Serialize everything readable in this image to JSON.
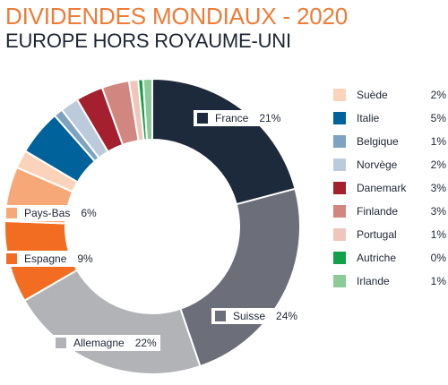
{
  "header": {
    "title": "DIVIDENDES MONDIAUX - 2020",
    "subtitle": "EUROPE HORS ROYAUME-UNI"
  },
  "chart_data": {
    "type": "pie",
    "donut": true,
    "legend_position": "right",
    "slices": [
      {
        "name": "France",
        "value": 21,
        "label": "21%",
        "color": "#1c2a3b"
      },
      {
        "name": "Suisse",
        "value": 24,
        "label": "24%",
        "color": "#6c6e79"
      },
      {
        "name": "Allemagne",
        "value": 22,
        "label": "22%",
        "color": "#b1b3b7"
      },
      {
        "name": "Espagne",
        "value": 9,
        "label": "9%",
        "color": "#f26d21"
      },
      {
        "name": "Pays-Bas",
        "value": 6,
        "label": "6%",
        "color": "#f6a879"
      },
      {
        "name": "Suède",
        "value": 2,
        "label": "2%",
        "color": "#fbd3bb"
      },
      {
        "name": "Italie",
        "value": 5,
        "label": "5%",
        "color": "#00629b"
      },
      {
        "name": "Belgique",
        "value": 1,
        "label": "1%",
        "color": "#7ea3c0"
      },
      {
        "name": "Norvège",
        "value": 2,
        "label": "2%",
        "color": "#bccbdc"
      },
      {
        "name": "Danemark",
        "value": 3,
        "label": "3%",
        "color": "#a4202e"
      },
      {
        "name": "Finlande",
        "value": 3,
        "label": "3%",
        "color": "#d18680"
      },
      {
        "name": "Portugal",
        "value": 1,
        "label": "1%",
        "color": "#efc6bb"
      },
      {
        "name": "Autriche",
        "value": 0,
        "label": "0%",
        "color": "#13a04a"
      },
      {
        "name": "Irlande",
        "value": 1,
        "label": "1%",
        "color": "#8ccb97"
      }
    ],
    "legend": [
      {
        "name": "Suède",
        "label": "2%",
        "color": "#fbd3bb"
      },
      {
        "name": "Italie",
        "label": "5%",
        "color": "#00629b"
      },
      {
        "name": "Belgique",
        "label": "1%",
        "color": "#7ea3c0"
      },
      {
        "name": "Norvège",
        "label": "2%",
        "color": "#bccbdc"
      },
      {
        "name": "Danemark",
        "label": "3%",
        "color": "#a4202e"
      },
      {
        "name": "Finlande",
        "label": "3%",
        "color": "#d18680"
      },
      {
        "name": "Portugal",
        "label": "1%",
        "color": "#efc6bb"
      },
      {
        "name": "Autriche",
        "label": "0%",
        "color": "#13a04a"
      },
      {
        "name": "Irlande",
        "label": "1%",
        "color": "#8ccb97"
      }
    ]
  }
}
